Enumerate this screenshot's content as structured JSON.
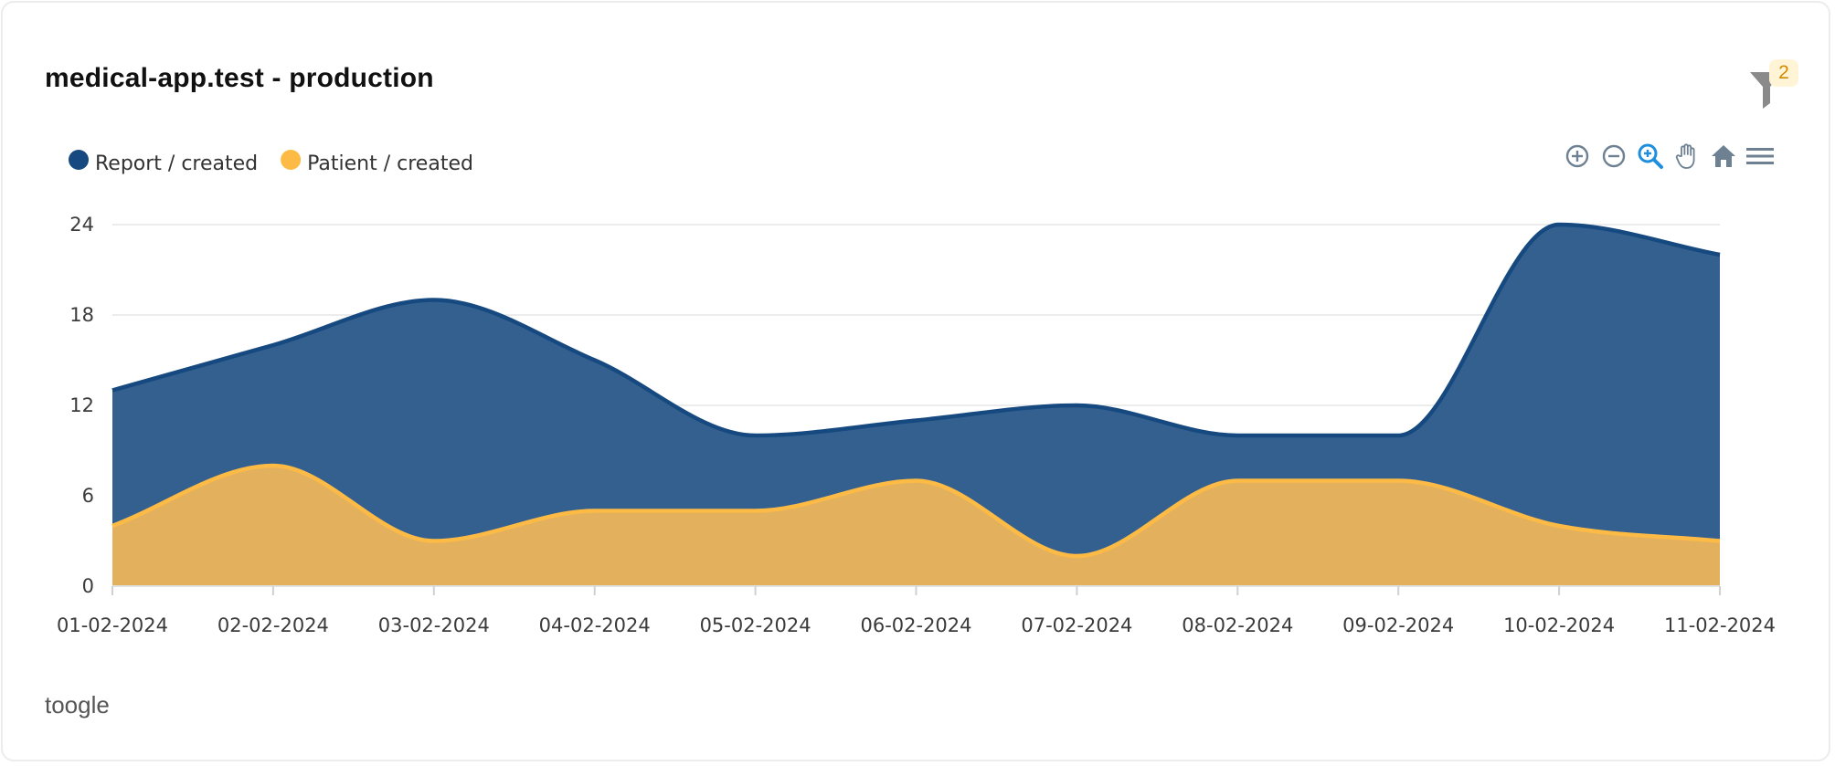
{
  "card": {
    "title": "medical-app.test - production",
    "filter_badge": "2",
    "footer_link": "toogle"
  },
  "toolbar": [
    "zoom-in-icon",
    "zoom-out-icon",
    "selection-zoom-icon",
    "pan-icon",
    "reset-zoom-icon",
    "menu-icon"
  ],
  "colors": {
    "report": "#15497f",
    "report_fill": "#34608f",
    "patient": "#fdbb46",
    "patient_fill": "#e3b15e",
    "grid": "#e6e6e6",
    "tool": "#6e8192",
    "tool_active": "#1d8fdd"
  },
  "chart_data": {
    "type": "area",
    "stacked": false,
    "curve": "smooth",
    "categories": [
      "01-02-2024",
      "02-02-2024",
      "03-02-2024",
      "04-02-2024",
      "05-02-2024",
      "06-02-2024",
      "07-02-2024",
      "08-02-2024",
      "09-02-2024",
      "10-02-2024",
      "11-02-2024"
    ],
    "series": [
      {
        "name": "Report / created",
        "values": [
          13,
          16,
          19,
          15,
          10,
          11,
          12,
          10,
          10,
          24,
          22
        ]
      },
      {
        "name": "Patient / created",
        "values": [
          4,
          8,
          3,
          5,
          5,
          7,
          2,
          7,
          7,
          4,
          3
        ]
      }
    ],
    "yticks": [
      0,
      6,
      12,
      18,
      24
    ],
    "ylim": [
      0,
      24
    ],
    "grid": true,
    "legend": "top-left",
    "xlabel": "",
    "ylabel": ""
  }
}
